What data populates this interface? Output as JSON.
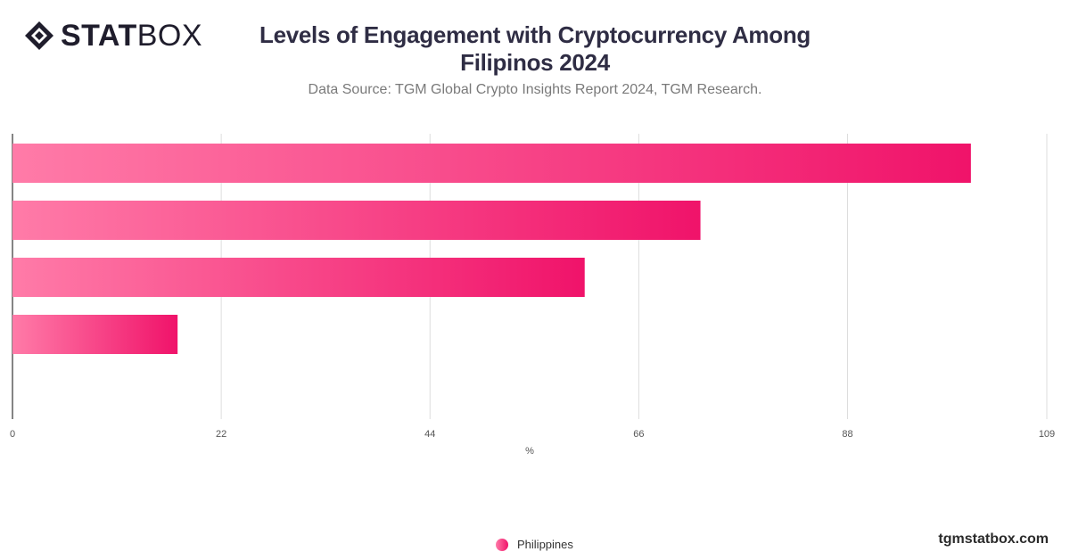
{
  "brand": {
    "logo_bold": "STAT",
    "logo_light": "BOX",
    "site": "tgmstatbox.com"
  },
  "header": {
    "title_line1": "Levels of Engagement with Cryptocurrency Among",
    "title_line2": "Filipinos 2024",
    "subtitle": "Data Source: TGM Global Crypto Insights Report 2024, TGM Research."
  },
  "colors": {
    "bar_start": "#ff7ba8",
    "bar_end": "#f0136a",
    "grid": "#dddddd",
    "axis": "#333333"
  },
  "legend": {
    "label": "Philippines"
  },
  "chart_data": {
    "type": "bar",
    "orientation": "horizontal",
    "categories": [
      "",
      "",
      "",
      ""
    ],
    "series": [
      {
        "name": "Philippines",
        "values": [
          101,
          72.5,
          60.3,
          17.4
        ]
      }
    ],
    "xlabel": "%",
    "ylabel": "",
    "xlim": [
      0,
      109
    ],
    "x_ticks": [
      "0",
      "22",
      "44",
      "66",
      "88",
      "109"
    ],
    "grid": true,
    "legend_position": "bottom-center"
  }
}
